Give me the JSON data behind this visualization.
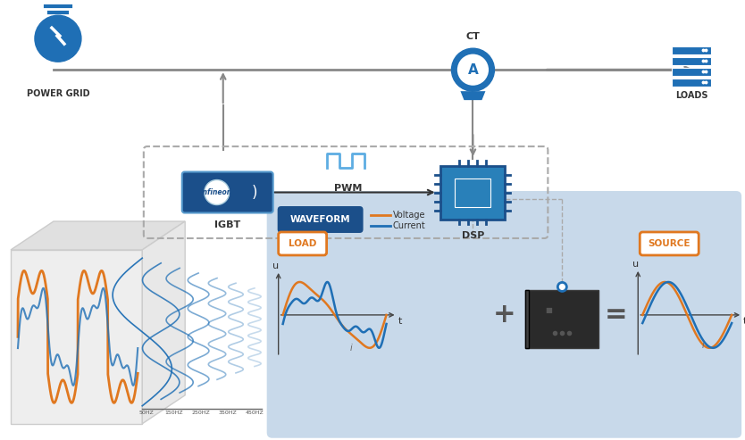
{
  "bg_color": "#ffffff",
  "blue_dark": "#1b4f8a",
  "blue_main": "#1f6fb5",
  "blue_mid": "#2980b9",
  "blue_light": "#5dade2",
  "blue_panel": "#c8d9ea",
  "orange": "#e07820",
  "gray_line": "#888888",
  "gray_text": "#333333",
  "labels": {
    "power_grid": "POWER GRID",
    "loads": "LOADS",
    "ct": "CT",
    "igbt": "IGBT",
    "pwm": "PWM",
    "dsp": "DSP",
    "waveform": "WAVEFORM",
    "load": "LOAD",
    "source": "SOURCE",
    "voltage": "Voltage",
    "current": "Current",
    "freq_labels": [
      "50HZ",
      "150HZ",
      "250HZ",
      "350HZ",
      "450HZ"
    ]
  }
}
